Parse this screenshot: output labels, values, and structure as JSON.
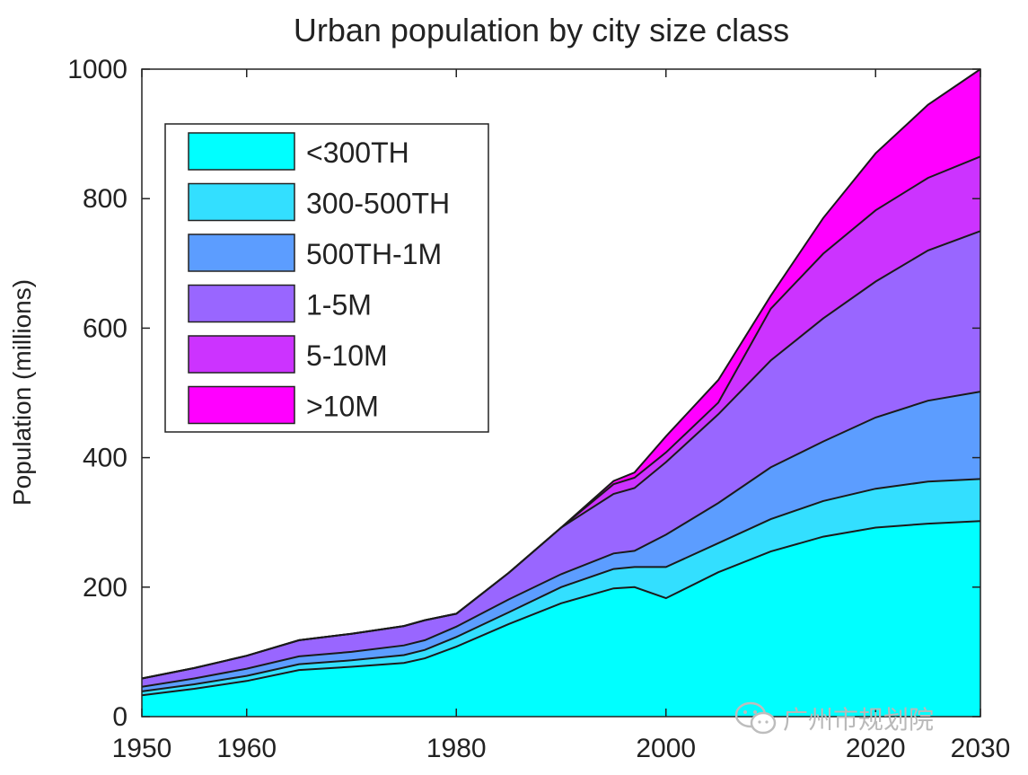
{
  "chart_data": {
    "type": "area",
    "title": "Urban population by city size class",
    "xlabel": "",
    "ylabel": "Population (millions)",
    "xlim": [
      1950,
      2030
    ],
    "ylim": [
      0,
      1000
    ],
    "x_ticks": [
      1950,
      1960,
      1980,
      2000,
      2020,
      2030
    ],
    "y_ticks": [
      0,
      200,
      400,
      600,
      800,
      1000
    ],
    "stacked": true,
    "grid": false,
    "legend_position": "top-left",
    "x": [
      1950,
      1955,
      1960,
      1965,
      1970,
      1975,
      1977,
      1980,
      1985,
      1990,
      1995,
      1997,
      2000,
      2005,
      2010,
      2015,
      2020,
      2025,
      2030
    ],
    "series": [
      {
        "name": "<300TH",
        "color": "#00ffff",
        "values": [
          33,
          43,
          55,
          72,
          77,
          83,
          90,
          108,
          143,
          175,
          198,
          200,
          183,
          223,
          255,
          278,
          292,
          298,
          302
        ]
      },
      {
        "name": "300-500TH",
        "color": "#33dfff",
        "values": [
          6,
          7,
          8,
          9,
          10,
          12,
          13,
          15,
          18,
          25,
          30,
          31,
          48,
          45,
          50,
          55,
          60,
          65,
          65
        ]
      },
      {
        "name": "500TH-1M",
        "color": "#5c9dff",
        "values": [
          7,
          9,
          11,
          12,
          13,
          15,
          15,
          16,
          20,
          20,
          24,
          25,
          50,
          62,
          80,
          92,
          110,
          125,
          135
        ]
      },
      {
        "name": "1-5M",
        "color": "#9966ff",
        "values": [
          13,
          16,
          20,
          25,
          28,
          30,
          31,
          20,
          41,
          72,
          92,
          97,
          112,
          137,
          165,
          190,
          210,
          232,
          248
        ]
      },
      {
        "name": "5-10M",
        "color": "#cc33ff",
        "values": [
          0,
          0,
          0,
          0,
          0,
          0,
          0,
          0,
          0,
          0,
          15,
          16,
          15,
          18,
          80,
          100,
          110,
          112,
          115
        ]
      },
      {
        "name": ">10M",
        "color": "#ff00ff",
        "values": [
          0,
          0,
          0,
          0,
          0,
          0,
          0,
          0,
          0,
          0,
          5,
          8,
          25,
          35,
          20,
          55,
          88,
          113,
          135
        ]
      }
    ]
  },
  "watermark": {
    "text": "广州市规划院"
  }
}
